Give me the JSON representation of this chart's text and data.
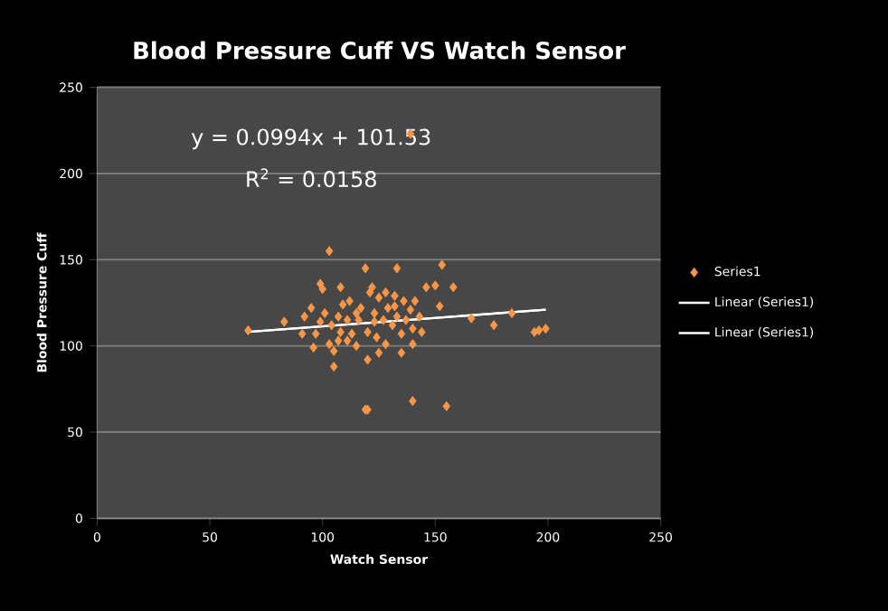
{
  "chart_data": {
    "type": "scatter",
    "title": "Blood Pressure Cuff VS Watch Sensor",
    "xlabel": "Watch Sensor",
    "ylabel": "Blood Pressure Cuff",
    "annotations": [
      "y = 0.0994x + 101.53",
      "R$^{2}$ = 0.0158"
    ],
    "xlim": [
      0,
      250
    ],
    "ylim": [
      0,
      250
    ],
    "xticks": [
      0,
      50,
      100,
      150,
      200,
      250
    ],
    "yticks": [
      0,
      50,
      100,
      150,
      200,
      250
    ],
    "grid": "y",
    "legend": "right",
    "marker": "diamond",
    "series": [
      {
        "name": "Series1",
        "color": "#f79646",
        "x": [
          67,
          83,
          103,
          119,
          133,
          153,
          158,
          139,
          99,
          100,
          108,
          146,
          150,
          152,
          166,
          176,
          184,
          194,
          196,
          199,
          105,
          120,
          135,
          120,
          119,
          140,
          155,
          105,
          96,
          95,
          101,
          91,
          92,
          97,
          99,
          104,
          107,
          108,
          111,
          112,
          115,
          116,
          117,
          120,
          121,
          123,
          124,
          125,
          127,
          128,
          129,
          131,
          132,
          133,
          135,
          136,
          137,
          139,
          140,
          141,
          143,
          144,
          140,
          125,
          113,
          109,
          128,
          122,
          107,
          103,
          115,
          132,
          123,
          111
        ],
        "values": [
          109,
          114,
          155,
          145,
          145,
          147,
          134,
          223,
          136,
          133,
          134,
          134,
          135,
          123,
          116,
          112,
          119,
          108,
          109,
          110,
          88,
          92,
          96,
          63,
          63,
          68,
          65,
          97,
          99,
          122,
          119,
          107,
          117,
          107,
          114,
          112,
          117,
          108,
          103,
          126,
          100,
          115,
          122,
          108,
          131,
          119,
          105,
          128,
          115,
          101,
          122,
          112,
          129,
          117,
          107,
          126,
          115,
          121,
          110,
          126,
          117,
          108,
          101,
          96,
          107,
          124,
          131,
          134,
          103,
          101,
          119,
          123,
          114,
          115
        ]
      },
      {
        "name": "Linear (Series1)",
        "type": "line",
        "color": "#ffffff",
        "marker": "none",
        "x": [
          66,
          199
        ],
        "values": [
          108,
          121
        ]
      },
      {
        "name": "Linear (Series1)",
        "type": "line",
        "color": "#ffffff",
        "marker": "none",
        "x": [
          66,
          199
        ],
        "values": [
          108,
          121
        ]
      }
    ]
  }
}
